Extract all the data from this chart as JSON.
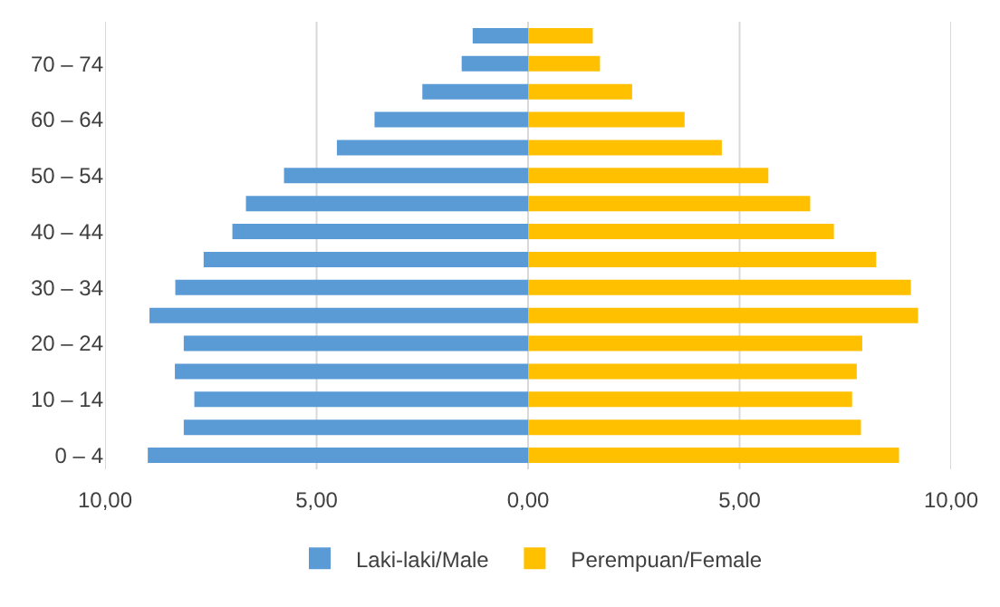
{
  "chart_data": {
    "type": "bar",
    "orientation": "horizontal",
    "categories": [
      null,
      "70 – 74",
      null,
      "60 – 64",
      null,
      "50 – 54",
      null,
      "40 – 44",
      null,
      "30 – 34",
      null,
      "20 – 24",
      null,
      "10 – 14",
      null,
      "0 – 4"
    ],
    "series": [
      {
        "name": "Laki-laki/Male",
        "color": "#5b9bd5",
        "values": [
          -1.31,
          -1.57,
          -2.5,
          -3.63,
          -4.52,
          -5.77,
          -6.67,
          -6.99,
          -7.67,
          -8.34,
          -8.95,
          -8.14,
          -8.35,
          -7.89,
          -8.14,
          -8.99
        ]
      },
      {
        "name": "Perempuan/Female",
        "color": "#ffc000",
        "values": [
          1.53,
          1.7,
          2.46,
          3.7,
          4.58,
          5.68,
          6.67,
          7.23,
          8.23,
          9.05,
          9.22,
          7.9,
          7.77,
          7.66,
          7.87,
          8.77
        ]
      }
    ],
    "xlim": [
      -10,
      10
    ],
    "xticks": [
      {
        "value": -10,
        "label": "10,00"
      },
      {
        "value": -5,
        "label": "5,00"
      },
      {
        "value": 0,
        "label": "0,00"
      },
      {
        "value": 5,
        "label": "5,00"
      },
      {
        "value": 10,
        "label": "10,00"
      }
    ],
    "stacked": true,
    "grid": "x",
    "legend": "bottom"
  }
}
